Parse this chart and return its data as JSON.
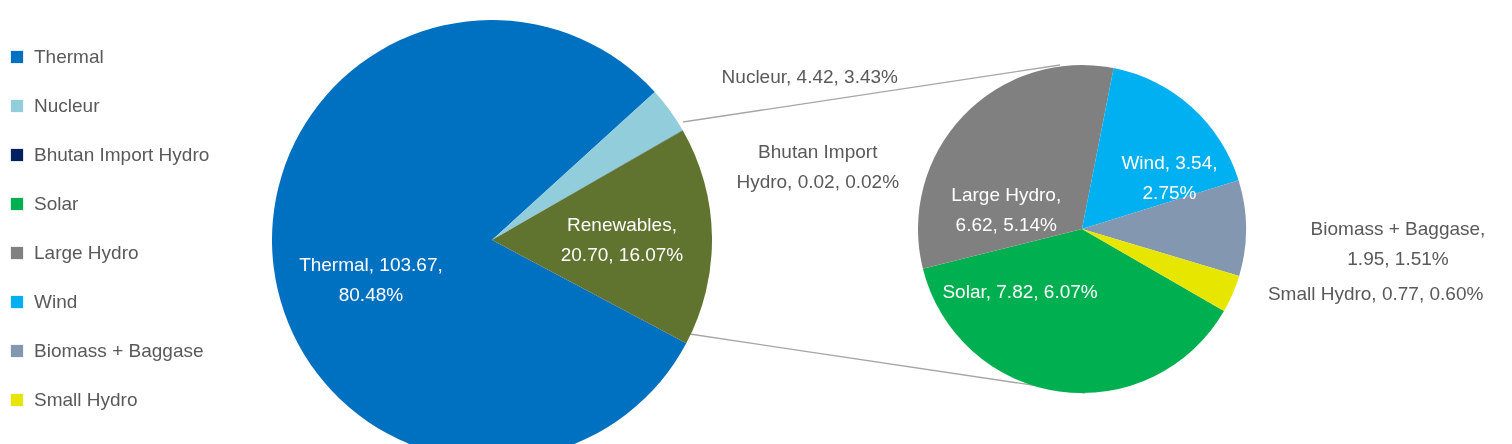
{
  "chart_data": [
    {
      "type": "pie",
      "categories": [
        "Thermal",
        "Nucleur",
        "Bhutan Import Hydro",
        null
      ],
      "values": [
        103.67,
        4.42,
        0.02,
        20.7
      ],
      "colors": [
        "#0070c0",
        "#92cddc",
        "#002060",
        "#607430"
      ],
      "value_labels": [
        "Thermal, 103.67, 80.48%",
        "Nucleur, 4.42, 3.43%",
        "Bhutan Import Hydro, 0.02, 0.02%",
        "Renewables, 20.70, 16.07%"
      ],
      "legend": "left"
    },
    {
      "type": "pie",
      "categories": [
        "Solar",
        "Large Hydro",
        "Wind",
        "Biomass + Baggase",
        "Small Hydro"
      ],
      "values": [
        7.82,
        6.62,
        3.54,
        1.95,
        0.77
      ],
      "colors": [
        "#00b050",
        "#808080",
        "#00b0f0",
        "#8497b0",
        "#e6e600"
      ],
      "value_labels": [
        "Solar, 7.82, 6.07%",
        "Large Hydro, 6.62, 5.14%",
        "Wind, 3.54, 2.75%",
        "Biomass + Baggase, 1.95, 1.51%",
        "Small Hydro, 0.77, 0.60%"
      ],
      "legend": "left"
    }
  ]
}
